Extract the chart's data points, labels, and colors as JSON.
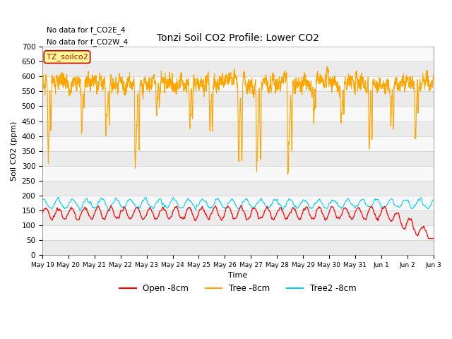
{
  "title": "Tonzi Soil CO2 Profile: Lower CO2",
  "xlabel": "Time",
  "ylabel": "Soil CO2 (ppm)",
  "ylim": [
    0,
    700
  ],
  "yticks": [
    0,
    50,
    100,
    150,
    200,
    250,
    300,
    350,
    400,
    450,
    500,
    550,
    600,
    650,
    700
  ],
  "legend_labels": [
    "Open -8cm",
    "Tree -8cm",
    "Tree2 -8cm"
  ],
  "legend_colors": [
    "#ff0000",
    "#ffa500",
    "#00ccff"
  ],
  "text_annotations": [
    "No data for f_CO2E_4",
    "No data for f_CO2W_4"
  ],
  "box_label": "TZ_soilco2",
  "box_color": "#cc0000",
  "box_bg": "#ffff99",
  "n_points": 2000,
  "figsize": [
    6.4,
    4.8
  ],
  "dpi": 100
}
